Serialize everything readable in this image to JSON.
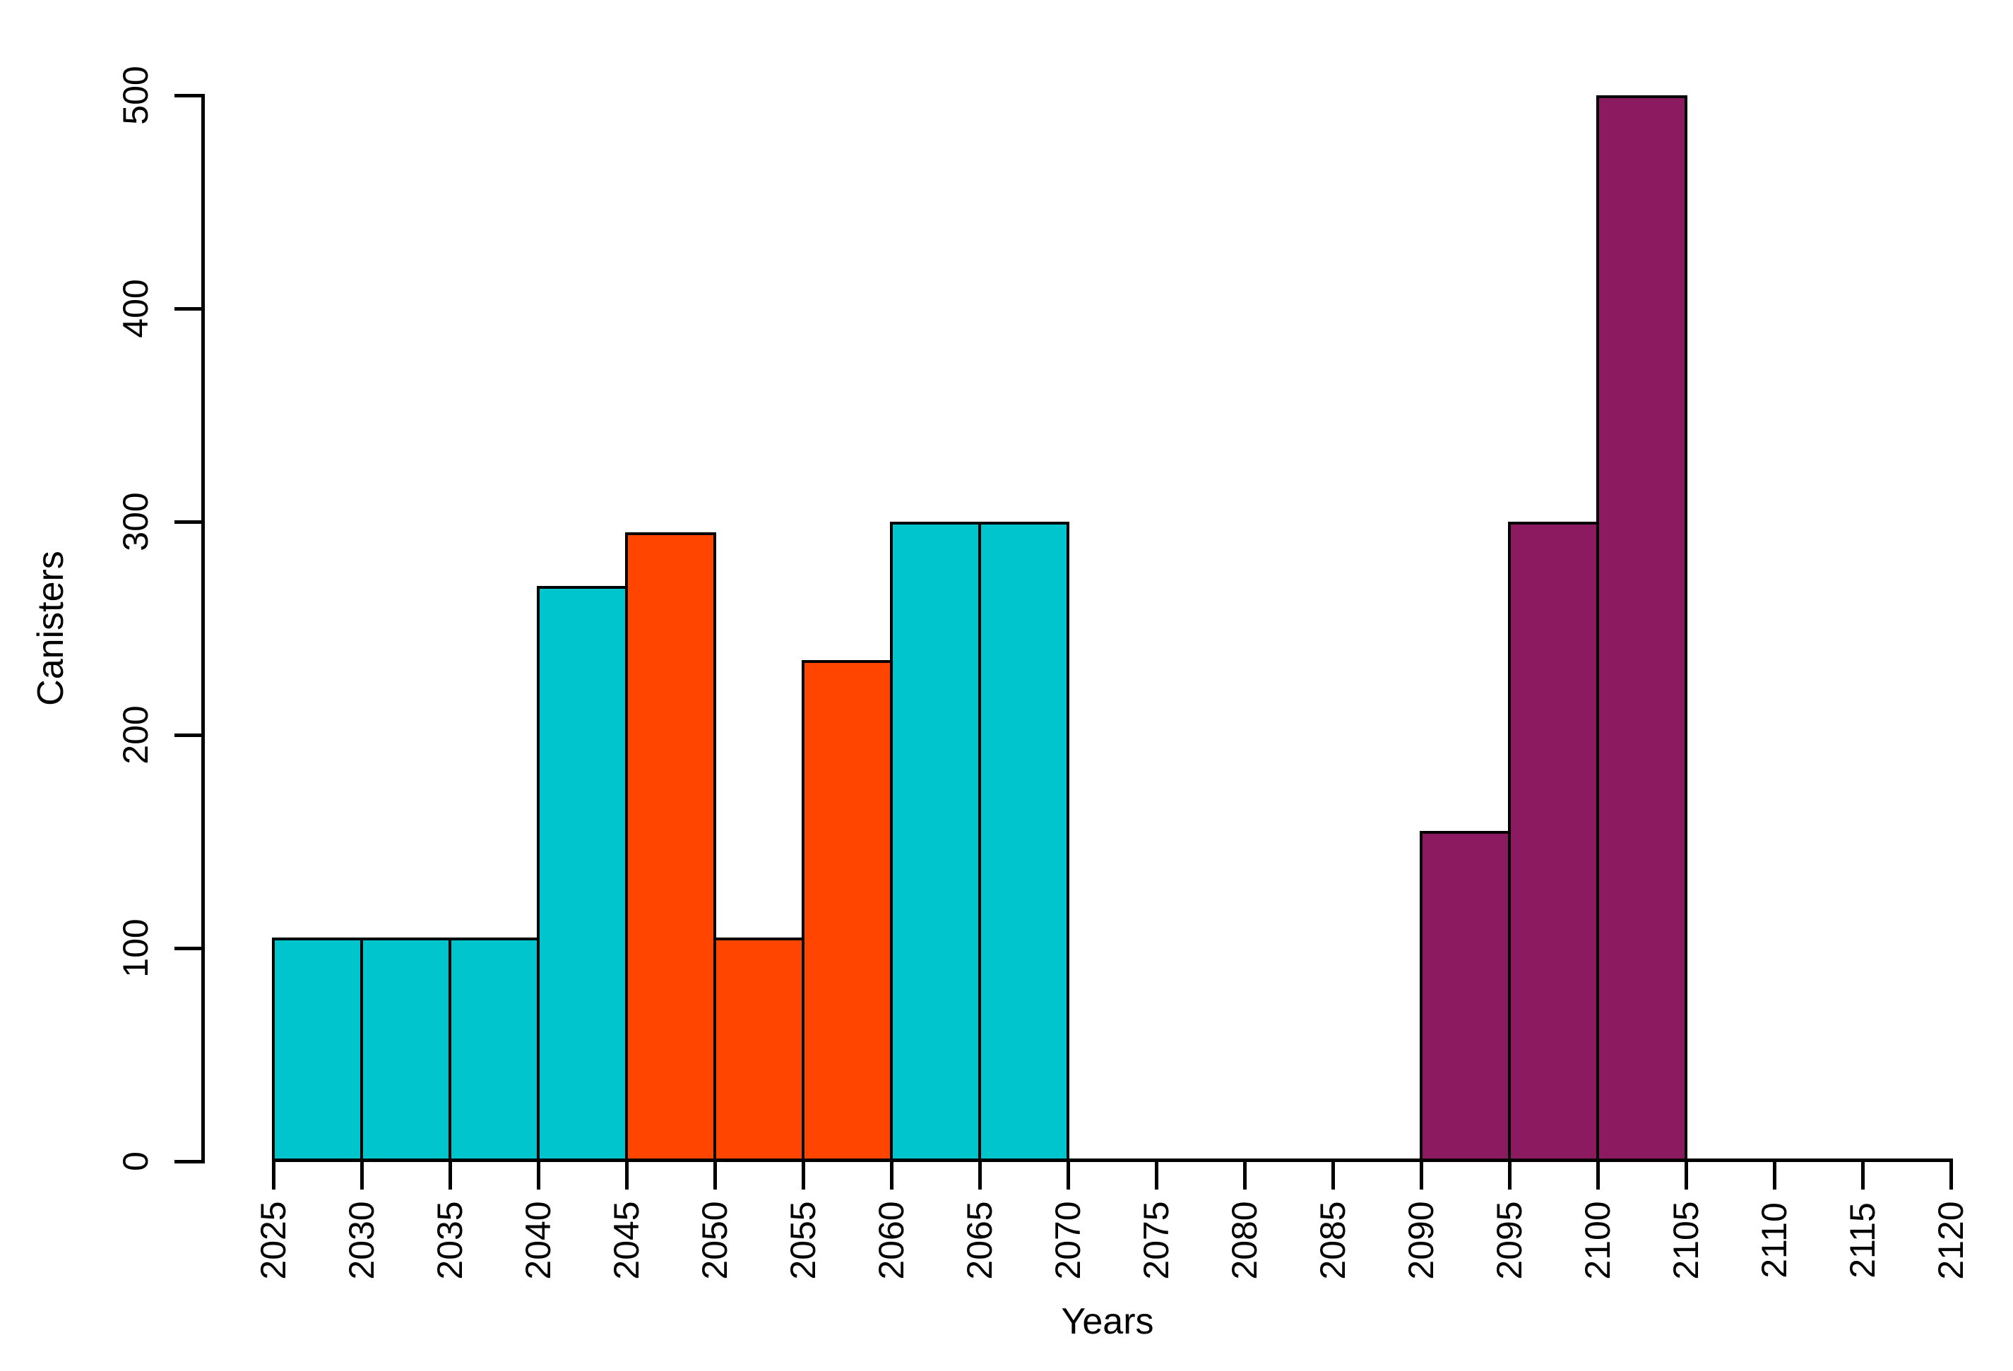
{
  "chart_data": {
    "type": "bar",
    "chart_style": "histogram",
    "title": "",
    "xlabel": "Years",
    "ylabel": "Canisters",
    "xlim": [
      2025,
      2120
    ],
    "ylim": [
      0,
      500
    ],
    "grid": false,
    "legend": false,
    "x_ticks": [
      2025,
      2030,
      2035,
      2040,
      2045,
      2050,
      2055,
      2060,
      2065,
      2070,
      2075,
      2080,
      2085,
      2090,
      2095,
      2100,
      2105,
      2110,
      2115,
      2120
    ],
    "y_ticks": [
      0,
      100,
      200,
      300,
      400,
      500
    ],
    "bin_width_years": 5,
    "bins": [
      {
        "start": 2025,
        "end": 2030,
        "count": 105,
        "color_key": "teal"
      },
      {
        "start": 2030,
        "end": 2035,
        "count": 105,
        "color_key": "teal"
      },
      {
        "start": 2035,
        "end": 2040,
        "count": 105,
        "color_key": "teal"
      },
      {
        "start": 2040,
        "end": 2045,
        "count": 270,
        "color_key": "teal"
      },
      {
        "start": 2045,
        "end": 2050,
        "count": 295,
        "color_key": "orange"
      },
      {
        "start": 2050,
        "end": 2055,
        "count": 105,
        "color_key": "orange"
      },
      {
        "start": 2055,
        "end": 2060,
        "count": 235,
        "color_key": "orange"
      },
      {
        "start": 2060,
        "end": 2065,
        "count": 300,
        "color_key": "teal"
      },
      {
        "start": 2065,
        "end": 2070,
        "count": 300,
        "color_key": "teal"
      },
      {
        "start": 2070,
        "end": 2075,
        "count": 0,
        "color_key": "none"
      },
      {
        "start": 2075,
        "end": 2080,
        "count": 0,
        "color_key": "none"
      },
      {
        "start": 2080,
        "end": 2085,
        "count": 0,
        "color_key": "none"
      },
      {
        "start": 2085,
        "end": 2090,
        "count": 0,
        "color_key": "none"
      },
      {
        "start": 2090,
        "end": 2095,
        "count": 155,
        "color_key": "purple"
      },
      {
        "start": 2095,
        "end": 2100,
        "count": 300,
        "color_key": "purple"
      },
      {
        "start": 2100,
        "end": 2105,
        "count": 500,
        "color_key": "purple"
      },
      {
        "start": 2105,
        "end": 2110,
        "count": 0,
        "color_key": "none"
      },
      {
        "start": 2110,
        "end": 2115,
        "count": 0,
        "color_key": "none"
      },
      {
        "start": 2115,
        "end": 2120,
        "count": 0,
        "color_key": "none"
      }
    ],
    "colors": {
      "teal": "#00C5CD",
      "orange": "#FF4500",
      "purple": "#8C1A60",
      "axis": "#000000",
      "background": "#FFFFFF"
    }
  }
}
